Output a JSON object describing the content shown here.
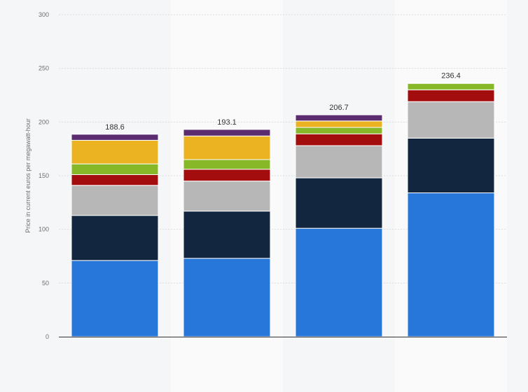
{
  "chart_data": {
    "type": "bar",
    "stacked": true,
    "title": "",
    "xlabel": "",
    "ylabel": "Price in current euros per megawatt-hour",
    "ylim": [
      0,
      300
    ],
    "yticks": [
      0,
      50,
      100,
      150,
      200,
      250,
      300
    ],
    "grid": true,
    "categories": [
      "",
      "",
      "",
      ""
    ],
    "totals": [
      188.6,
      193.1,
      206.7,
      236.4
    ],
    "series": [
      {
        "name": "",
        "color": "#2776da",
        "values": [
          71,
          73,
          101,
          134
        ]
      },
      {
        "name": "",
        "color": "#12263f",
        "values": [
          42,
          44,
          47,
          51
        ]
      },
      {
        "name": "",
        "color": "#b7b7b7",
        "values": [
          28,
          28,
          30,
          34
        ]
      },
      {
        "name": "",
        "color": "#a30d0d",
        "values": [
          10,
          11,
          11,
          11
        ]
      },
      {
        "name": "",
        "color": "#86b828",
        "values": [
          10,
          9,
          6,
          6
        ]
      },
      {
        "name": "",
        "color": "#ebb221",
        "values": [
          22,
          22,
          6,
          0
        ]
      },
      {
        "name": "",
        "color": "#5b2c6f",
        "values": [
          5.6,
          6.1,
          5.7,
          0.4
        ]
      }
    ]
  }
}
